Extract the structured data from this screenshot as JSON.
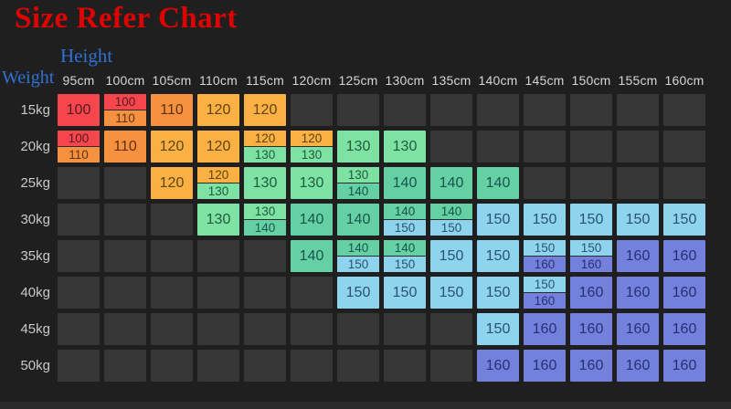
{
  "chart_data": {
    "type": "table",
    "title": "Size Refer Chart",
    "column_axis_label": "Height",
    "row_axis_label": "Weight",
    "columns": [
      "95cm",
      "100cm",
      "105cm",
      "110cm",
      "115cm",
      "120cm",
      "125cm",
      "130cm",
      "135cm",
      "140cm",
      "145cm",
      "150cm",
      "155cm",
      "160cm"
    ],
    "rows": [
      "15kg",
      "20kg",
      "25kg",
      "30kg",
      "35kg",
      "40kg",
      "45kg",
      "50kg"
    ],
    "cells": [
      [
        "100",
        [
          "100",
          "110"
        ],
        "110",
        "120",
        "120",
        null,
        null,
        null,
        null,
        null,
        null,
        null,
        null,
        null
      ],
      [
        [
          "100",
          "110"
        ],
        "110",
        "120",
        "120",
        [
          "120",
          "130"
        ],
        [
          "120",
          "130"
        ],
        "130",
        "130",
        null,
        null,
        null,
        null,
        null,
        null
      ],
      [
        null,
        null,
        "120",
        [
          "120",
          "130"
        ],
        "130",
        "130",
        [
          "130",
          "140"
        ],
        "140",
        "140",
        "140",
        null,
        null,
        null,
        null
      ],
      [
        null,
        null,
        null,
        "130",
        [
          "130",
          "140"
        ],
        "140",
        "140",
        [
          "140",
          "150"
        ],
        [
          "140",
          "150"
        ],
        "150",
        "150",
        "150",
        "150",
        "150"
      ],
      [
        null,
        null,
        null,
        null,
        null,
        "140",
        [
          "140",
          "150"
        ],
        [
          "140",
          "150"
        ],
        "150",
        "150",
        [
          "150",
          "160"
        ],
        [
          "150",
          "160"
        ],
        "160",
        "160"
      ],
      [
        null,
        null,
        null,
        null,
        null,
        null,
        "150",
        "150",
        "150",
        "150",
        [
          "150",
          "160"
        ],
        "160",
        "160",
        "160"
      ],
      [
        null,
        null,
        null,
        null,
        null,
        null,
        null,
        null,
        null,
        "150",
        "160",
        "160",
        "160",
        "160"
      ],
      [
        null,
        null,
        null,
        null,
        null,
        null,
        null,
        null,
        null,
        "160",
        "160",
        "160",
        "160",
        "160"
      ]
    ],
    "size_colors": {
      "100": {
        "bg": "#f5464e",
        "text": "#58181d"
      },
      "110": {
        "bg": "#f69140",
        "text": "#5c330f"
      },
      "120": {
        "bg": "#fbb044",
        "text": "#5e430f"
      },
      "130": {
        "bg": "#7de2a3",
        "text": "#1f5c3c"
      },
      "140": {
        "bg": "#65d0a3",
        "text": "#17554a"
      },
      "150": {
        "bg": "#8fd4ee",
        "text": "#29536b"
      },
      "160": {
        "bg": "#7481dc",
        "text": "#272f74"
      }
    }
  },
  "ui_colors": {
    "background": "#1f1f1f",
    "title": "#dd0303",
    "axis_label": "#2e72d4",
    "column_header_text": "#d6d6d6",
    "row_label_text": "#c9c9c9",
    "empty_cell": "#373737",
    "split_divider": "#2b2b28",
    "bottom_strip": "#2b2b2b"
  }
}
